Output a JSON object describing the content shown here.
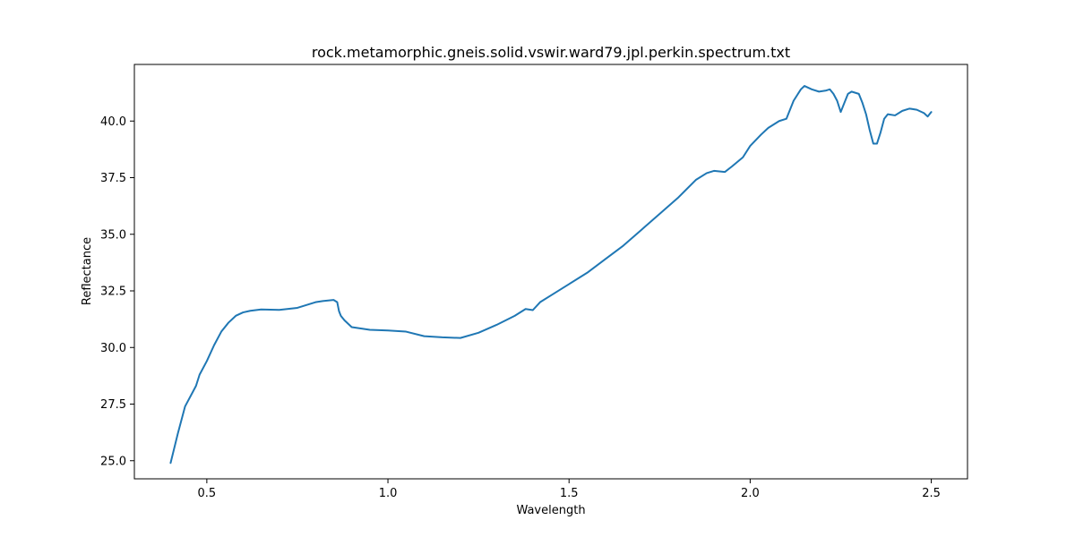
{
  "chart_data": {
    "type": "line",
    "title": "rock.metamorphic.gneis.solid.vswir.ward79.jpl.perkin.spectrum.txt",
    "xlabel": "Wavelength",
    "ylabel": "Reflectance",
    "xlim": [
      0.3,
      2.6
    ],
    "ylim": [
      24.2,
      42.5
    ],
    "xticks": [
      0.5,
      1.0,
      1.5,
      2.0,
      2.5
    ],
    "xtick_labels": [
      "0.5",
      "1.0",
      "1.5",
      "2.0",
      "2.5"
    ],
    "yticks": [
      25.0,
      27.5,
      30.0,
      32.5,
      35.0,
      37.5,
      40.0
    ],
    "ytick_labels": [
      "25.0",
      "27.5",
      "30.0",
      "32.5",
      "35.0",
      "37.5",
      "40.0"
    ],
    "grid": false,
    "series": [
      {
        "color": "#1f77b4",
        "x": [
          0.4,
          0.42,
          0.44,
          0.46,
          0.47,
          0.48,
          0.5,
          0.52,
          0.54,
          0.56,
          0.58,
          0.6,
          0.62,
          0.65,
          0.7,
          0.75,
          0.78,
          0.8,
          0.82,
          0.85,
          0.86,
          0.865,
          0.87,
          0.88,
          0.9,
          0.95,
          1.0,
          1.05,
          1.1,
          1.15,
          1.2,
          1.25,
          1.3,
          1.35,
          1.38,
          1.4,
          1.42,
          1.45,
          1.5,
          1.55,
          1.6,
          1.65,
          1.7,
          1.75,
          1.8,
          1.85,
          1.88,
          1.9,
          1.93,
          1.95,
          1.98,
          2.0,
          2.03,
          2.05,
          2.08,
          2.1,
          2.12,
          2.14,
          2.15,
          2.17,
          2.19,
          2.21,
          2.22,
          2.23,
          2.24,
          2.25,
          2.26,
          2.27,
          2.28,
          2.3,
          2.31,
          2.32,
          2.33,
          2.34,
          2.35,
          2.36,
          2.37,
          2.38,
          2.4,
          2.42,
          2.44,
          2.46,
          2.48,
          2.49,
          2.5
        ],
        "y": [
          24.9,
          26.2,
          27.4,
          28.0,
          28.3,
          28.8,
          29.4,
          30.1,
          30.7,
          31.1,
          31.4,
          31.55,
          31.62,
          31.68,
          31.66,
          31.75,
          31.9,
          32.0,
          32.05,
          32.1,
          32.0,
          31.6,
          31.4,
          31.2,
          30.9,
          30.78,
          30.75,
          30.7,
          30.5,
          30.45,
          30.42,
          30.65,
          31.0,
          31.4,
          31.7,
          31.65,
          32.0,
          32.3,
          32.8,
          33.3,
          33.9,
          34.5,
          35.2,
          35.9,
          36.6,
          37.4,
          37.7,
          37.8,
          37.75,
          38.0,
          38.4,
          38.9,
          39.4,
          39.7,
          40.0,
          40.1,
          40.9,
          41.4,
          41.55,
          41.4,
          41.3,
          41.35,
          41.4,
          41.2,
          40.9,
          40.4,
          40.8,
          41.2,
          41.3,
          41.2,
          40.8,
          40.3,
          39.6,
          39.0,
          39.0,
          39.5,
          40.1,
          40.3,
          40.25,
          40.45,
          40.55,
          40.5,
          40.35,
          40.2,
          40.4
        ]
      }
    ]
  }
}
